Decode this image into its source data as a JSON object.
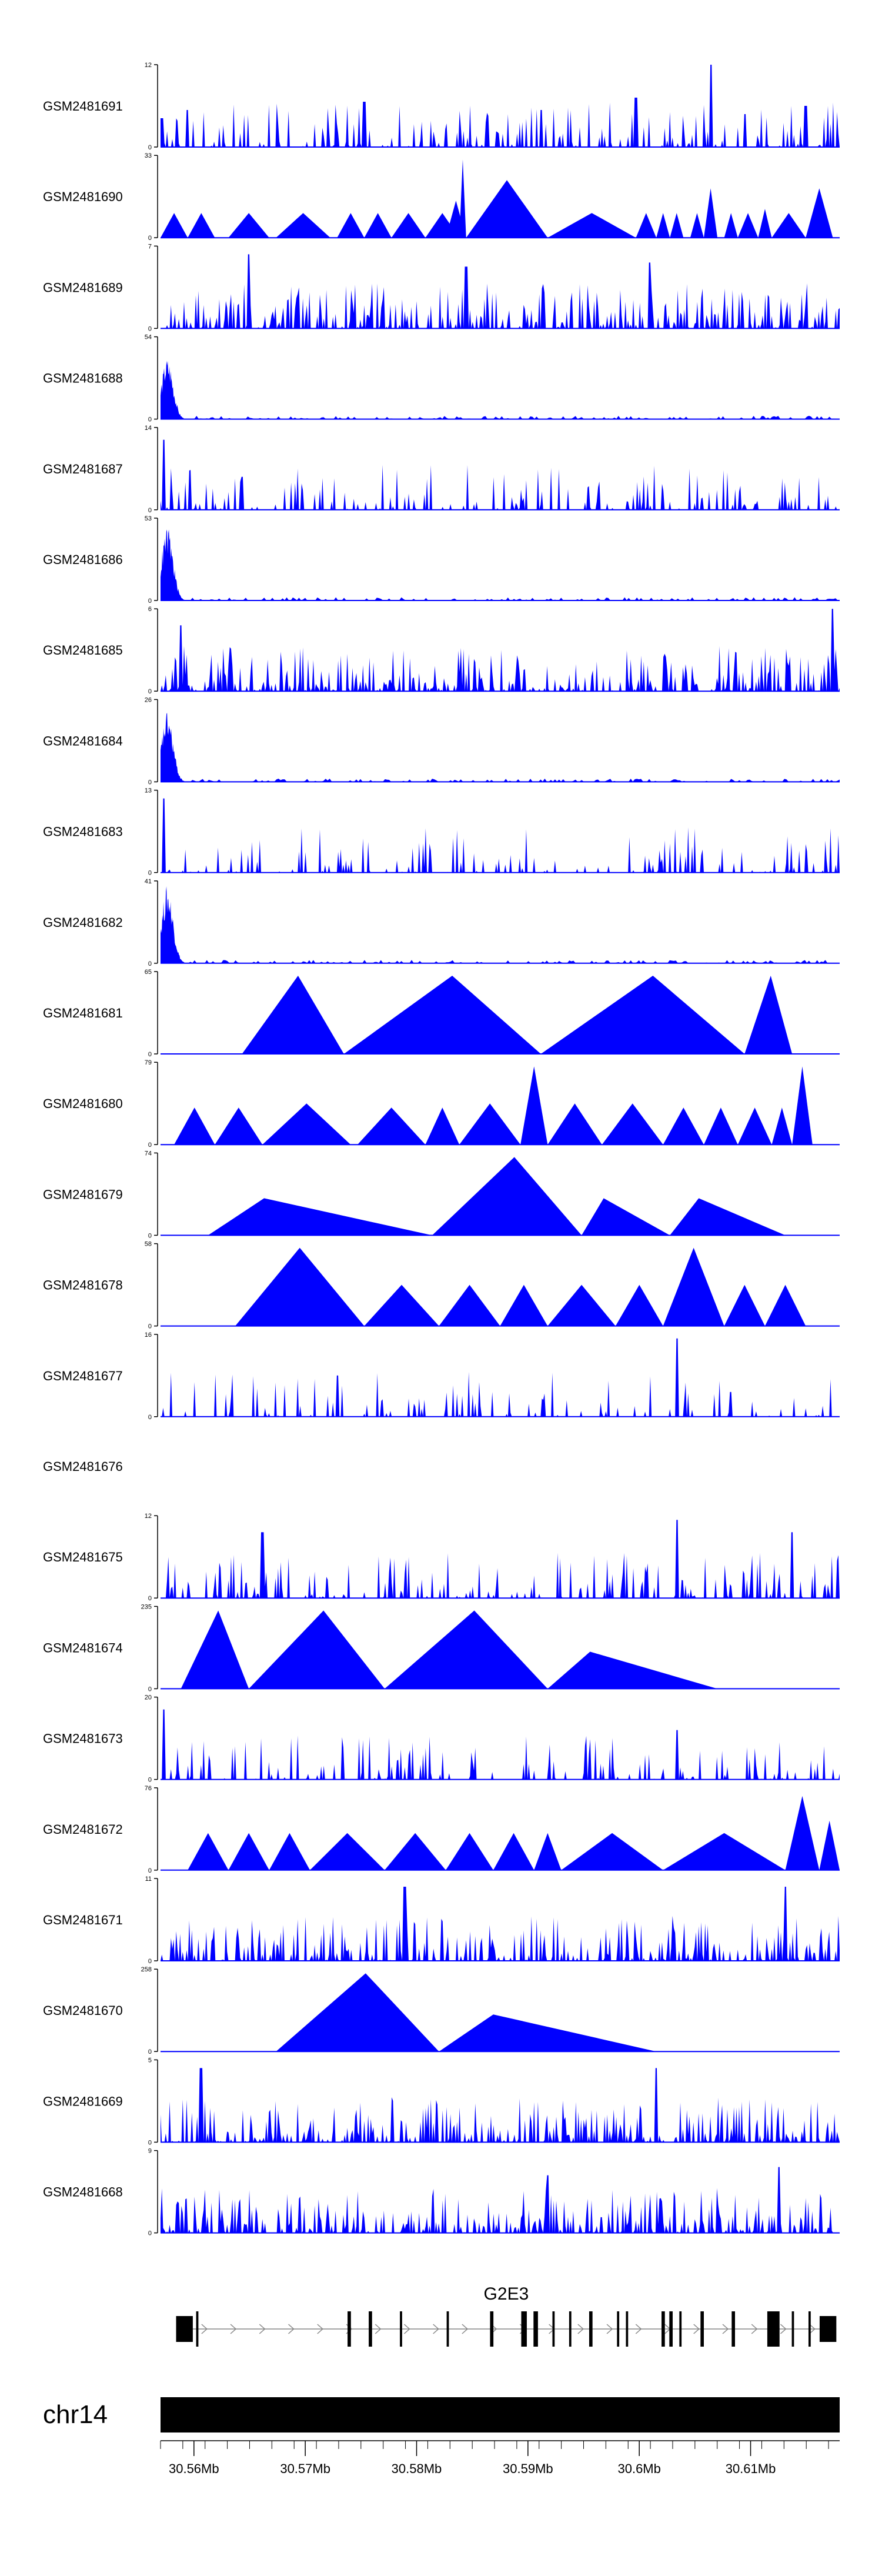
{
  "chart_data": {
    "type": "area",
    "title": "",
    "xlabel": "",
    "ylabel": "",
    "xlim_mb": [
      30.557,
      30.618
    ],
    "colors": {
      "track_fill": "#0000ff",
      "axis": "#000000",
      "gene": "#000000",
      "intron_arrow": "#888888"
    },
    "tracks": [
      {
        "name": "GSM2481691",
        "ymax": 12,
        "ymin_label": 0,
        "style": "dense",
        "peaks": [
          [
            0.002,
            0.35
          ],
          [
            0.04,
            0.45
          ],
          [
            0.3,
            0.55
          ],
          [
            0.48,
            0.3
          ],
          [
            0.56,
            0.45
          ],
          [
            0.7,
            0.6
          ],
          [
            0.81,
            1.0
          ],
          [
            0.86,
            0.4
          ],
          [
            0.95,
            0.5
          ]
        ],
        "seed": 11
      },
      {
        "name": "GSM2481690",
        "ymax": 33,
        "ymin_label": 0,
        "style": "triangles",
        "tri": [
          [
            0.0,
            0.04,
            0.3
          ],
          [
            0.04,
            0.08,
            0.3
          ],
          [
            0.1,
            0.16,
            0.3
          ],
          [
            0.17,
            0.25,
            0.3
          ],
          [
            0.26,
            0.3,
            0.3
          ],
          [
            0.3,
            0.34,
            0.3
          ],
          [
            0.34,
            0.39,
            0.3
          ],
          [
            0.39,
            0.44,
            0.3
          ],
          [
            0.42,
            0.45,
            0.45
          ],
          [
            0.44,
            0.45,
            0.95
          ],
          [
            0.45,
            0.57,
            0.7
          ],
          [
            0.57,
            0.7,
            0.3
          ],
          [
            0.7,
            0.73,
            0.3
          ],
          [
            0.73,
            0.75,
            0.3
          ],
          [
            0.75,
            0.77,
            0.3
          ],
          [
            0.78,
            0.8,
            0.3
          ],
          [
            0.8,
            0.82,
            0.6
          ],
          [
            0.83,
            0.85,
            0.3
          ],
          [
            0.85,
            0.88,
            0.3
          ],
          [
            0.88,
            0.9,
            0.35
          ],
          [
            0.9,
            0.95,
            0.3
          ],
          [
            0.95,
            0.99,
            0.6
          ]
        ],
        "seed": 12
      },
      {
        "name": "GSM2481689",
        "ymax": 7,
        "ymin_label": 0,
        "style": "dense",
        "density": 0.55,
        "peaks": [
          [
            0.13,
            0.9
          ],
          [
            0.45,
            0.75
          ],
          [
            0.72,
            0.8
          ]
        ],
        "seed": 13
      },
      {
        "name": "GSM2481688",
        "ymax": 54,
        "ymin_label": 0,
        "style": "spike",
        "peaks": [
          [
            0.01,
            0.75
          ]
        ],
        "seed": 14
      },
      {
        "name": "GSM2481687",
        "ymax": 14,
        "ymin_label": 0,
        "style": "dense",
        "density": 0.3,
        "peaks": [
          [
            0.005,
            0.85
          ],
          [
            0.12,
            0.4
          ]
        ],
        "seed": 15
      },
      {
        "name": "GSM2481686",
        "ymax": 53,
        "ymin_label": 0,
        "style": "spike",
        "peaks": [
          [
            0.01,
            0.9
          ]
        ],
        "seed": 16
      },
      {
        "name": "GSM2481685",
        "ymax": 6,
        "ymin_label": 0,
        "style": "dense",
        "density": 0.65,
        "peaks": [
          [
            0.99,
            1.0
          ],
          [
            0.03,
            0.8
          ]
        ],
        "seed": 17
      },
      {
        "name": "GSM2481684",
        "ymax": 26,
        "ymin_label": 0,
        "style": "spike",
        "peaks": [
          [
            0.01,
            0.85
          ]
        ],
        "seed": 18
      },
      {
        "name": "GSM2481683",
        "ymax": 13,
        "ymin_label": 0,
        "style": "dense",
        "density": 0.25,
        "peaks": [
          [
            0.005,
            0.9
          ]
        ],
        "seed": 19
      },
      {
        "name": "GSM2481682",
        "ymax": 41,
        "ymin_label": 0,
        "style": "spike",
        "peaks": [
          [
            0.01,
            0.95
          ]
        ],
        "seed": 20
      },
      {
        "name": "GSM2481681",
        "ymax": 65,
        "ymin_label": 0,
        "style": "triangles",
        "tri": [
          [
            0.12,
            0.27,
            0.95
          ],
          [
            0.27,
            0.56,
            0.95
          ],
          [
            0.56,
            0.86,
            0.95
          ],
          [
            0.86,
            0.93,
            0.95
          ]
        ],
        "shape": "ramp",
        "seed": 21
      },
      {
        "name": "GSM2481680",
        "ymax": 79,
        "ymin_label": 0,
        "style": "triangles",
        "tri": [
          [
            0.02,
            0.08,
            0.45
          ],
          [
            0.08,
            0.15,
            0.45
          ],
          [
            0.15,
            0.28,
            0.5
          ],
          [
            0.29,
            0.39,
            0.45
          ],
          [
            0.39,
            0.44,
            0.45
          ],
          [
            0.44,
            0.53,
            0.5
          ],
          [
            0.53,
            0.57,
            0.95
          ],
          [
            0.57,
            0.65,
            0.5
          ],
          [
            0.65,
            0.74,
            0.5
          ],
          [
            0.74,
            0.8,
            0.45
          ],
          [
            0.8,
            0.85,
            0.45
          ],
          [
            0.85,
            0.9,
            0.45
          ],
          [
            0.9,
            0.93,
            0.45
          ],
          [
            0.93,
            0.96,
            0.95
          ]
        ],
        "seed": 22
      },
      {
        "name": "GSM2481679",
        "ymax": 74,
        "ymin_label": 0,
        "style": "triangles",
        "tri": [
          [
            0.07,
            0.4,
            0.45
          ],
          [
            0.4,
            0.62,
            0.95
          ],
          [
            0.62,
            0.75,
            0.45
          ],
          [
            0.75,
            0.92,
            0.45
          ]
        ],
        "shape": "ramp",
        "seed": 23
      },
      {
        "name": "GSM2481678",
        "ymax": 58,
        "ymin_label": 0,
        "style": "triangles",
        "tri": [
          [
            0.11,
            0.3,
            0.95
          ],
          [
            0.3,
            0.41,
            0.5
          ],
          [
            0.41,
            0.5,
            0.5
          ],
          [
            0.5,
            0.57,
            0.5
          ],
          [
            0.57,
            0.67,
            0.5
          ],
          [
            0.67,
            0.74,
            0.5
          ],
          [
            0.74,
            0.83,
            0.95
          ],
          [
            0.83,
            0.89,
            0.5
          ],
          [
            0.89,
            0.95,
            0.5
          ]
        ],
        "seed": 24
      },
      {
        "name": "GSM2481677",
        "ymax": 16,
        "ymin_label": 0,
        "style": "dense",
        "density": 0.2,
        "peaks": [
          [
            0.26,
            0.5
          ],
          [
            0.76,
            0.95
          ],
          [
            0.84,
            0.3
          ]
        ],
        "seed": 25
      },
      {
        "name": "GSM2481676",
        "ymax": null,
        "ymin_label": null,
        "style": "empty",
        "seed": 26
      },
      {
        "name": "GSM2481675",
        "ymax": 12,
        "ymin_label": 0,
        "style": "dense",
        "density": 0.35,
        "peaks": [
          [
            0.15,
            0.8
          ],
          [
            0.76,
            0.95
          ],
          [
            0.93,
            0.8
          ]
        ],
        "seed": 27
      },
      {
        "name": "GSM2481674",
        "ymax": 235,
        "ymin_label": 0,
        "style": "triangles",
        "tri": [
          [
            0.03,
            0.13,
            0.95
          ],
          [
            0.13,
            0.33,
            0.95
          ],
          [
            0.33,
            0.57,
            0.95
          ],
          [
            0.57,
            0.82,
            0.45
          ]
        ],
        "shape": "ramp",
        "seed": 28
      },
      {
        "name": "GSM2481673",
        "ymax": 20,
        "ymin_label": 0,
        "style": "dense",
        "density": 0.3,
        "peaks": [
          [
            0.005,
            0.85
          ],
          [
            0.76,
            0.6
          ]
        ],
        "seed": 29
      },
      {
        "name": "GSM2481672",
        "ymax": 76,
        "ymin_label": 0,
        "style": "triangles",
        "tri": [
          [
            0.04,
            0.1,
            0.45
          ],
          [
            0.1,
            0.16,
            0.45
          ],
          [
            0.16,
            0.22,
            0.45
          ],
          [
            0.22,
            0.33,
            0.45
          ],
          [
            0.33,
            0.42,
            0.45
          ],
          [
            0.42,
            0.49,
            0.45
          ],
          [
            0.49,
            0.55,
            0.45
          ],
          [
            0.55,
            0.59,
            0.45
          ],
          [
            0.59,
            0.74,
            0.45
          ],
          [
            0.74,
            0.92,
            0.45
          ],
          [
            0.92,
            0.97,
            0.9
          ],
          [
            0.97,
            1.0,
            0.6
          ]
        ],
        "seed": 30
      },
      {
        "name": "GSM2481671",
        "ymax": 11,
        "ymin_label": 0,
        "style": "dense",
        "density": 0.55,
        "peaks": [
          [
            0.36,
            0.9
          ],
          [
            0.92,
            0.9
          ]
        ],
        "seed": 31
      },
      {
        "name": "GSM2481670",
        "ymax": 258,
        "ymin_label": 0,
        "style": "triangles",
        "tri": [
          [
            0.17,
            0.41,
            0.95
          ],
          [
            0.41,
            0.73,
            0.45
          ]
        ],
        "shape": "ramp",
        "seed": 32
      },
      {
        "name": "GSM2481669",
        "ymax": 5,
        "ymin_label": 0,
        "style": "dense",
        "density": 0.6,
        "peaks": [
          [
            0.06,
            0.9
          ],
          [
            0.73,
            0.9
          ]
        ],
        "seed": 33
      },
      {
        "name": "GSM2481668",
        "ymax": 9,
        "ymin_label": 0,
        "style": "dense",
        "density": 0.55,
        "peaks": [
          [
            0.57,
            0.7
          ],
          [
            0.91,
            0.8
          ]
        ],
        "seed": 34
      }
    ],
    "gene": {
      "name": "G2E3",
      "start_mb": 30.5584,
      "end_mb": 30.6177,
      "exons_mb": [
        [
          30.5584,
          30.5599
        ],
        [
          30.5602,
          30.5604
        ],
        [
          30.5738,
          30.5741
        ],
        [
          30.5757,
          30.576
        ],
        [
          30.5785,
          30.5787
        ],
        [
          30.5827,
          30.5829
        ],
        [
          30.5866,
          30.5869
        ],
        [
          30.5894,
          30.5899
        ],
        [
          30.5905,
          30.5909
        ],
        [
          30.5922,
          30.5924
        ],
        [
          30.5937,
          30.5939
        ],
        [
          30.5955,
          30.5958
        ],
        [
          30.598,
          30.5982
        ],
        [
          30.5988,
          30.599
        ],
        [
          30.602,
          30.6023
        ],
        [
          30.6027,
          30.603
        ],
        [
          30.6036,
          30.6038
        ],
        [
          30.6055,
          30.6058
        ],
        [
          30.6083,
          30.6086
        ],
        [
          30.6115,
          30.6126
        ],
        [
          30.6137,
          30.6139
        ],
        [
          30.6152,
          30.6154
        ],
        [
          30.6162,
          30.6177
        ]
      ]
    },
    "chromosome": {
      "name": "chr14",
      "ticks_mb": [
        30.56,
        30.57,
        30.58,
        30.59,
        30.6,
        30.61
      ],
      "tick_labels": [
        "30.56Mb",
        "30.57Mb",
        "30.58Mb",
        "30.59Mb",
        "30.6Mb",
        "30.61Mb"
      ],
      "minor_tick_step_mb": 0.002
    }
  }
}
